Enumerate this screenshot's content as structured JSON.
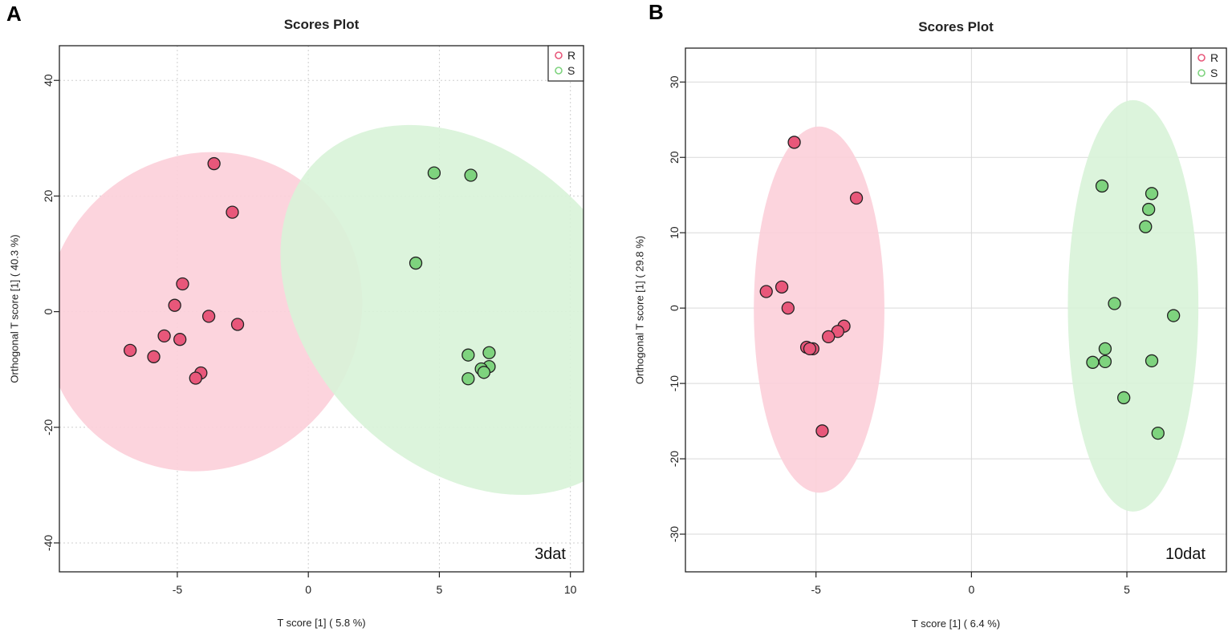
{
  "chart_data": [
    {
      "type": "scatter",
      "panel_label": "A",
      "title": "Scores Plot",
      "xlabel": "T score [1] ( 5.8 %)",
      "ylabel": "Orthogonal T score [1] ( 40.3 %)",
      "xlim": [
        -9.5,
        10.5
      ],
      "ylim": [
        -45,
        46
      ],
      "xticks": [
        -5,
        0,
        5,
        10
      ],
      "yticks": [
        -40,
        -20,
        0,
        20,
        40
      ],
      "grid_style": "dotted",
      "annotation": "3dat",
      "legend": {
        "position": "top-right",
        "entries": [
          "R",
          "S"
        ]
      },
      "series": [
        {
          "name": "R",
          "color": "#e8577a",
          "ellipse_color": "#fccfd9",
          "ellipse": {
            "cx": -4.0,
            "cy": 0,
            "rx": 5.9,
            "ry": 28.3,
            "angle_deg": 42
          },
          "points": [
            [
              -3.6,
              25.6
            ],
            [
              -2.9,
              17.2
            ],
            [
              -4.8,
              4.8
            ],
            [
              -5.1,
              1.1
            ],
            [
              -3.8,
              -0.8
            ],
            [
              -2.7,
              -2.2
            ],
            [
              -5.5,
              -4.2
            ],
            [
              -4.9,
              -4.8
            ],
            [
              -6.8,
              -6.7
            ],
            [
              -5.9,
              -7.8
            ],
            [
              -4.1,
              -10.6
            ],
            [
              -4.3,
              -11.5
            ]
          ]
        },
        {
          "name": "S",
          "color": "#7ed37e",
          "ellipse_color": "#d8f3d8",
          "ellipse": {
            "cx": 6.0,
            "cy": 0.3,
            "rx": 5.9,
            "ry": 36.5,
            "angle_deg": -45
          },
          "points": [
            [
              4.8,
              24.0
            ],
            [
              6.2,
              23.6
            ],
            [
              4.1,
              8.4
            ],
            [
              6.1,
              -7.5
            ],
            [
              6.9,
              -7.1
            ],
            [
              6.9,
              -9.5
            ],
            [
              6.6,
              -9.9
            ],
            [
              6.7,
              -10.5
            ],
            [
              6.1,
              -11.6
            ]
          ]
        }
      ]
    },
    {
      "type": "scatter",
      "panel_label": "B",
      "title": "Scores Plot",
      "xlabel": "T score [1] ( 6.4 %)",
      "ylabel": "Orthogonal T score [1] ( 29.8 %)",
      "xlim": [
        -9.2,
        8.2
      ],
      "ylim": [
        -35,
        34.5
      ],
      "xticks": [
        -5,
        0,
        5
      ],
      "yticks": [
        -30,
        -20,
        -10,
        0,
        10,
        20,
        30
      ],
      "grid_style": "solid",
      "annotation": "10dat",
      "legend": {
        "position": "top-right",
        "entries": [
          "R",
          "S"
        ]
      },
      "series": [
        {
          "name": "R",
          "color": "#e8577a",
          "ellipse_color": "#fccfd9",
          "ellipse": {
            "cx": -4.9,
            "cy": -0.2,
            "rx": 2.1,
            "ry": 24.3,
            "angle_deg": 0
          },
          "points": [
            [
              -5.7,
              22.0
            ],
            [
              -3.7,
              14.6
            ],
            [
              -6.6,
              2.2
            ],
            [
              -6.1,
              2.8
            ],
            [
              -5.9,
              0.0
            ],
            [
              -4.1,
              -2.4
            ],
            [
              -4.3,
              -3.1
            ],
            [
              -4.6,
              -3.8
            ],
            [
              -5.3,
              -5.2
            ],
            [
              -5.1,
              -5.4
            ],
            [
              -5.2,
              -5.4
            ],
            [
              -4.8,
              -16.3
            ]
          ]
        },
        {
          "name": "S",
          "color": "#7ed37e",
          "ellipse_color": "#d8f3d8",
          "ellipse": {
            "cx": 5.2,
            "cy": 0.3,
            "rx": 2.1,
            "ry": 27.3,
            "angle_deg": 0
          },
          "points": [
            [
              4.2,
              16.2
            ],
            [
              5.8,
              15.2
            ],
            [
              5.7,
              13.1
            ],
            [
              5.6,
              10.8
            ],
            [
              4.6,
              0.6
            ],
            [
              6.5,
              -1.0
            ],
            [
              4.3,
              -5.4
            ],
            [
              3.9,
              -7.2
            ],
            [
              4.3,
              -7.1
            ],
            [
              5.8,
              -7.0
            ],
            [
              4.9,
              -11.9
            ],
            [
              6.0,
              -16.6
            ]
          ]
        }
      ]
    }
  ]
}
